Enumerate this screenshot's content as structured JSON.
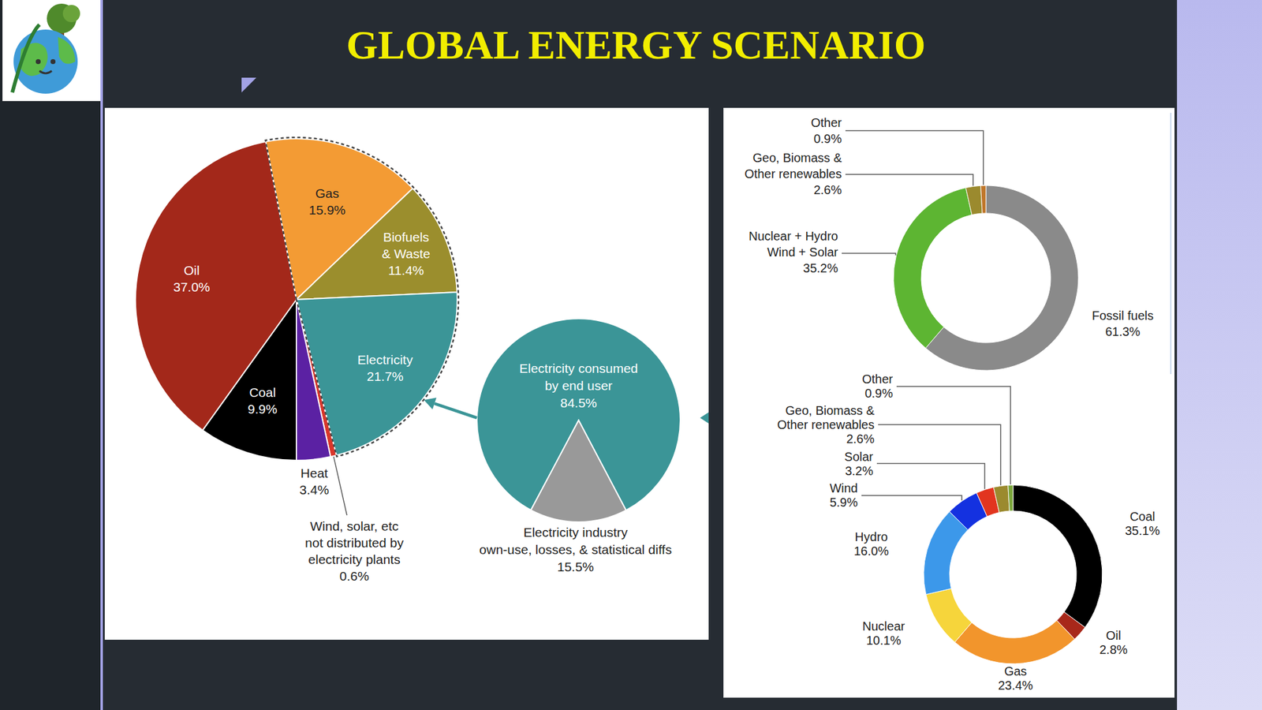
{
  "title": "GLOBAL ENERGY SCENARIO",
  "chart_data": [
    {
      "type": "pie",
      "categories": [
        "Gas",
        "Biofuels & Waste",
        "Electricity",
        "Wind, solar, etc not distributed by electricity plants",
        "Heat",
        "Coal",
        "Oil"
      ],
      "values": [
        15.9,
        11.4,
        21.7,
        0.6,
        3.4,
        9.9,
        37.0
      ],
      "value_labels": [
        "15.9%",
        "11.4%",
        "21.7%",
        "0.6%",
        "3.4%",
        "9.9%",
        "37.0%"
      ],
      "colors": [
        "#f39b34",
        "#9b8e2d",
        "#3b9597",
        "#d9362a",
        "#5b21a3",
        "#000000",
        "#a3281a"
      ],
      "data_labels": true
    },
    {
      "type": "pie",
      "categories": [
        "Electricity consumed by end user",
        "Electricity industry own-use, losses, & statistical diffs"
      ],
      "values": [
        84.5,
        15.5
      ],
      "value_labels": [
        "84.5%",
        "15.5%"
      ],
      "colors": [
        "#3b9597",
        "#999999"
      ],
      "data_labels": true
    },
    {
      "type": "donut",
      "categories": [
        "Fossil fuels",
        "Nuclear + Hydro Wind + Solar",
        "Geo, Biomass & Other renewables",
        "Other"
      ],
      "values": [
        61.3,
        35.2,
        2.6,
        0.9
      ],
      "value_labels": [
        "61.3%",
        "35.2%",
        "2.6%",
        "0.9%"
      ],
      "colors": [
        "#8a8a8a",
        "#5db532",
        "#9b8a2e",
        "#c0762a"
      ],
      "data_labels": true
    },
    {
      "type": "donut",
      "categories": [
        "Coal",
        "Oil",
        "Gas",
        "Nuclear",
        "Hydro",
        "Wind",
        "Solar",
        "Geo, Biomass & Other renewables",
        "Other"
      ],
      "values": [
        35.1,
        2.8,
        23.4,
        10.1,
        16.0,
        5.9,
        3.2,
        2.6,
        0.9
      ],
      "value_labels": [
        "35.1%",
        "2.8%",
        "23.4%",
        "10.1%",
        "16.0%",
        "5.9%",
        "3.2%",
        "2.6%",
        "0.9%"
      ],
      "colors": [
        "#000000",
        "#a8281a",
        "#f2952c",
        "#f6d53b",
        "#3c98ea",
        "#1431e0",
        "#e2351f",
        "#9b8a2e",
        "#7aa63a"
      ],
      "data_labels": true
    }
  ]
}
